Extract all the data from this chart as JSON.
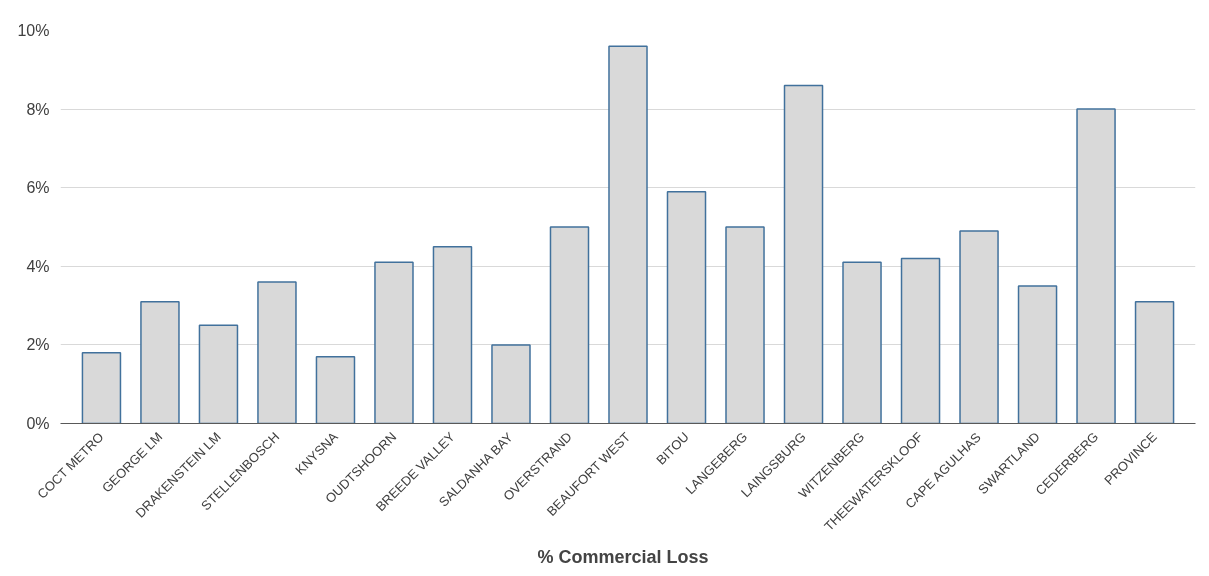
{
  "chart_data": {
    "type": "bar",
    "xlabel": "%  Commercial  Loss",
    "categories": [
      "COCT METRO",
      "GEORGE LM",
      "DRAKENSTEIN LM",
      "STELLENBOSCH",
      "KNYSNA",
      "OUDTSHOORN",
      "BREEDE VALLEY",
      "SALDANHA BAY",
      "OVERSTRAND",
      "BEAUFORT WEST",
      "BITOU",
      "LANGEBERG",
      "LAINGSBURG",
      "WITZENBERG",
      "THEEWATERSKLOOF",
      "CAPE AGULHAS",
      "SWARTLAND",
      "CEDERBERG",
      "PROVINCE"
    ],
    "values": [
      1.8,
      3.1,
      2.5,
      3.6,
      1.7,
      4.1,
      4.5,
      2.0,
      5.0,
      9.6,
      5.9,
      5.0,
      8.6,
      4.1,
      4.2,
      4.9,
      3.5,
      8.0,
      3.1
    ],
    "color": "#d9d9d9",
    "ylim": [
      0,
      10
    ],
    "yticks": [
      {
        "value": 0,
        "label": "0%"
      },
      {
        "value": 2,
        "label": "2%"
      },
      {
        "value": 4,
        "label": "4%"
      },
      {
        "value": 6,
        "label": "6%"
      },
      {
        "value": 8,
        "label": "8%"
      },
      {
        "value": 10,
        "label": "10%"
      }
    ],
    "grid": "y"
  }
}
